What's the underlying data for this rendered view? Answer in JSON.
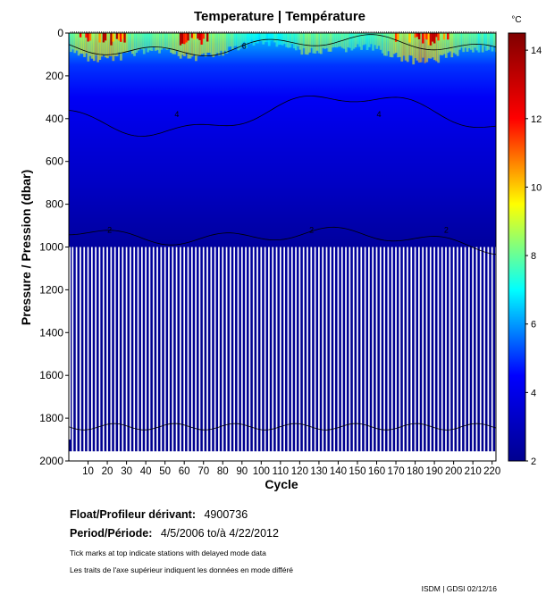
{
  "chart_data": {
    "type": "heatmap",
    "title": "Temperature | Température",
    "xlabel": "Cycle",
    "ylabel": "Pressure / Pression (dbar)",
    "xlim": [
      0,
      222
    ],
    "ylim": [
      0,
      2000
    ],
    "y_inverted": true,
    "x_ticks": [
      10,
      20,
      30,
      40,
      50,
      60,
      70,
      80,
      90,
      100,
      110,
      120,
      130,
      140,
      150,
      160,
      170,
      180,
      190,
      200,
      210,
      220
    ],
    "y_ticks": [
      0,
      200,
      400,
      600,
      800,
      1000,
      1200,
      1400,
      1600,
      1800,
      2000
    ],
    "colorbar": {
      "unit": "°C",
      "min": 2,
      "max": 14.5,
      "ticks": [
        2,
        4,
        6,
        8,
        10,
        12,
        14
      ],
      "colormap": "jet",
      "stops": [
        "#00008f",
        "#0000ff",
        "#00ffff",
        "#ffff00",
        "#ff0000",
        "#800000"
      ]
    },
    "contour_levels": [
      2,
      4,
      6
    ],
    "contour_label_examples": [
      "2",
      "4",
      "6",
      "2",
      "4",
      "2"
    ],
    "temperature_profile": [
      {
        "pressure": 0,
        "temp": 7.0
      },
      {
        "pressure": 50,
        "temp": 6.0
      },
      {
        "pressure": 150,
        "temp": 5.0
      },
      {
        "pressure": 300,
        "temp": 4.3
      },
      {
        "pressure": 500,
        "temp": 3.7
      },
      {
        "pressure": 700,
        "temp": 3.2
      },
      {
        "pressure": 900,
        "temp": 2.6
      },
      {
        "pressure": 1000,
        "temp": 2.3
      },
      {
        "pressure": 1500,
        "temp": 2.0
      },
      {
        "pressure": 2000,
        "temp": 1.9
      }
    ],
    "grid": false,
    "legend": "colorbar-right"
  },
  "info": {
    "float_label": "Float/Profileur dérivant:",
    "float_value": "4900736",
    "period_label": "Period/Période:",
    "period_value": "4/5/2006  to/à  4/22/2012",
    "note_en": "Tick marks at top indicate stations with delayed mode data",
    "note_fr": "Les traits de l'axe supérieur indiquent les données en mode différé",
    "footer": "ISDM | GDSI 02/12/16"
  }
}
